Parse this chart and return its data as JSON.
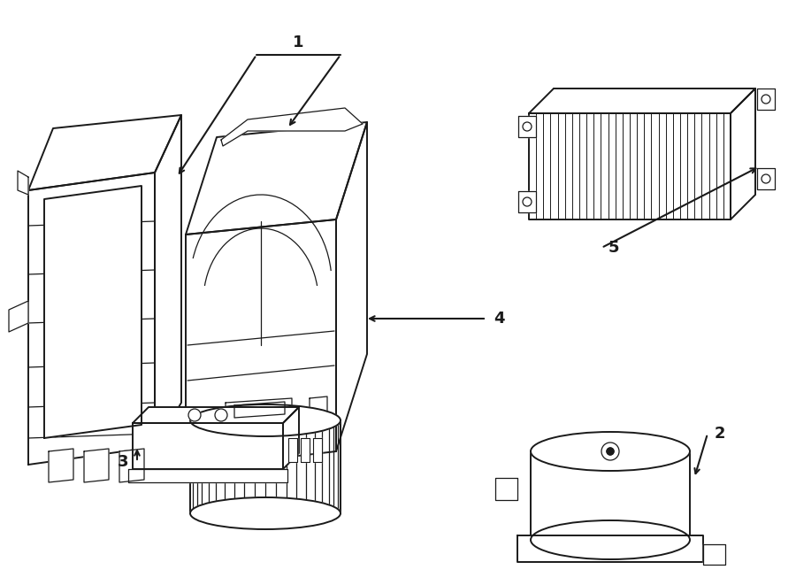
{
  "bg_color": "#ffffff",
  "lc": "#1a1a1a",
  "lw_main": 1.4,
  "lw_detail": 0.9,
  "fig_w": 9.0,
  "fig_h": 6.61,
  "dpi": 100,
  "font_size": 13,
  "font_weight": "bold"
}
